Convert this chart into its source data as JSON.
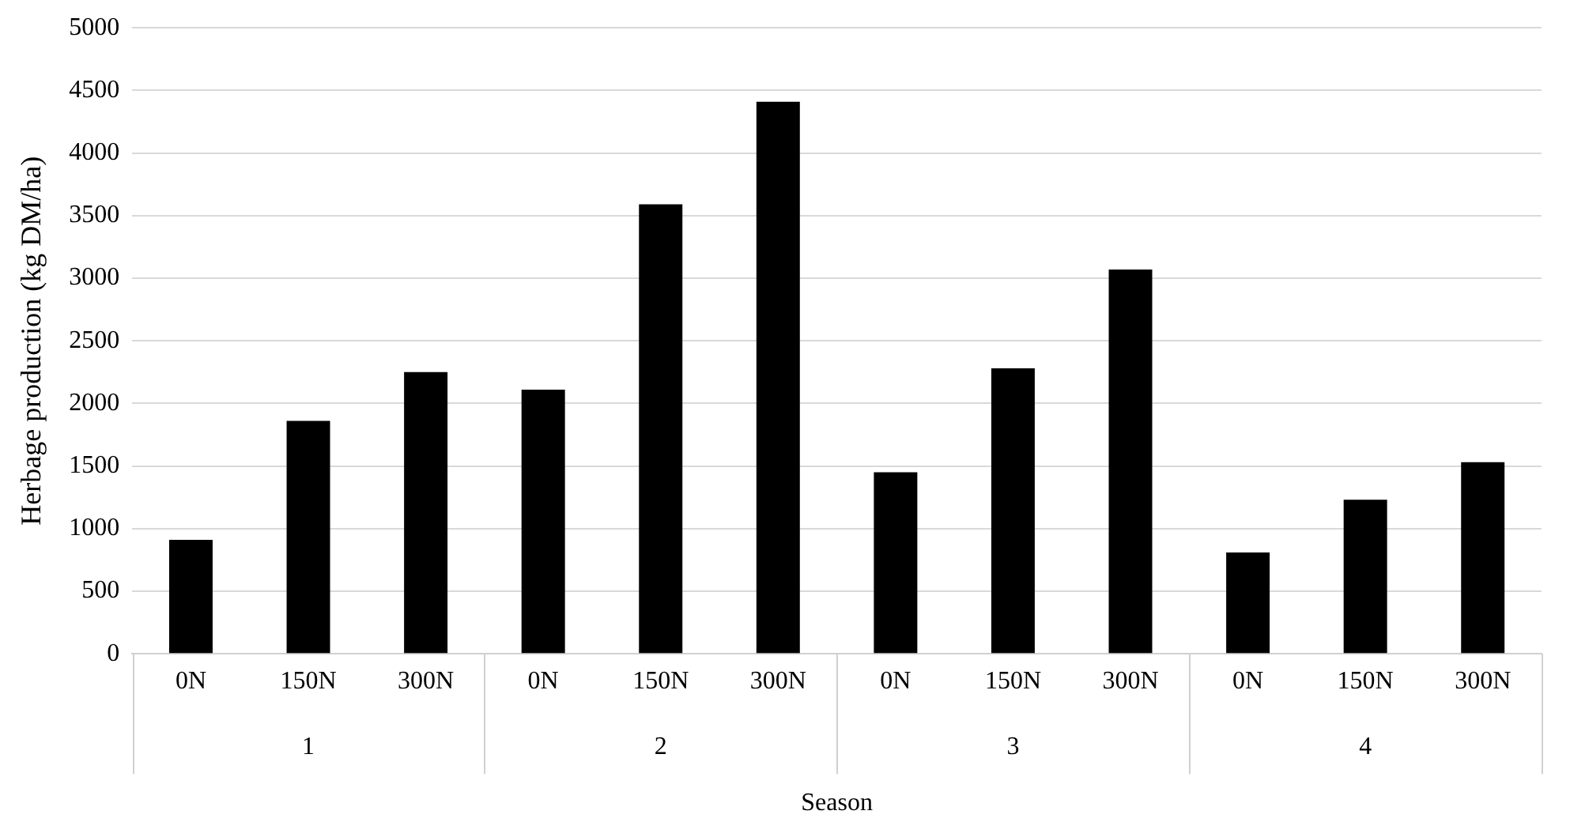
{
  "chart_data": {
    "type": "bar",
    "ylabel": "Herbage production (kg DM/ha)",
    "xlabel": "Season",
    "categories": [
      "0N",
      "150N",
      "300N",
      "0N",
      "150N",
      "300N",
      "0N",
      "150N",
      "300N",
      "0N",
      "150N",
      "300N"
    ],
    "values": [
      910,
      1860,
      2250,
      2110,
      3590,
      4410,
      1450,
      2280,
      3070,
      810,
      1230,
      1530
    ],
    "color": "#000000",
    "ylim": [
      0,
      5000
    ],
    "yticks": [
      0,
      500,
      1000,
      1500,
      2000,
      2500,
      3000,
      3500,
      4000,
      4500,
      5000
    ],
    "grid": "y",
    "legend": false,
    "annotations": [
      "1",
      "2",
      "3",
      "4"
    ]
  }
}
